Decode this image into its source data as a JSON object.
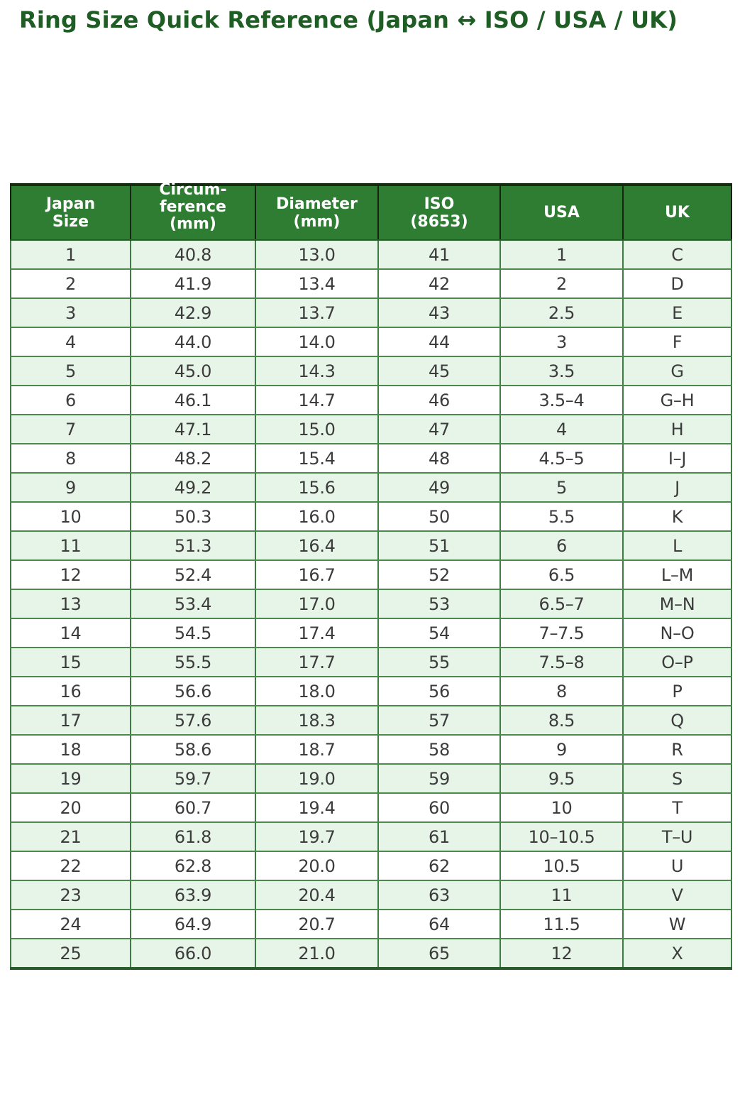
{
  "page": {
    "title": "Ring Size Quick Reference (Japan ↔ ISO / USA / UK)"
  },
  "style": {
    "title_green": "#1e5e24",
    "header_green": "#2f7d33",
    "row_alt_green": "#e7f4e8",
    "grid_green": "#3f7c42",
    "header_rule_dark": "#162a12",
    "cell_text": "#3c3c3c"
  },
  "chart_data": {
    "type": "table",
    "title": "Ring Size Quick Reference (Japan ↔ ISO / USA / UK)",
    "columns": [
      "Japan\nSize",
      "Circum-\nference\n(mm)",
      "Diameter\n(mm)",
      "ISO\n(8653)",
      "USA",
      "UK"
    ],
    "column_keys": [
      "japan_size",
      "circumference_mm",
      "diameter_mm",
      "iso_8653",
      "usa",
      "uk"
    ],
    "rows": [
      [
        "1",
        "40.8",
        "13.0",
        "41",
        "1",
        "C"
      ],
      [
        "2",
        "41.9",
        "13.4",
        "42",
        "2",
        "D"
      ],
      [
        "3",
        "42.9",
        "13.7",
        "43",
        "2.5",
        "E"
      ],
      [
        "4",
        "44.0",
        "14.0",
        "44",
        "3",
        "F"
      ],
      [
        "5",
        "45.0",
        "14.3",
        "45",
        "3.5",
        "G"
      ],
      [
        "6",
        "46.1",
        "14.7",
        "46",
        "3.5–4",
        "G–H"
      ],
      [
        "7",
        "47.1",
        "15.0",
        "47",
        "4",
        "H"
      ],
      [
        "8",
        "48.2",
        "15.4",
        "48",
        "4.5–5",
        "I–J"
      ],
      [
        "9",
        "49.2",
        "15.6",
        "49",
        "5",
        "J"
      ],
      [
        "10",
        "50.3",
        "16.0",
        "50",
        "5.5",
        "K"
      ],
      [
        "11",
        "51.3",
        "16.4",
        "51",
        "6",
        "L"
      ],
      [
        "12",
        "52.4",
        "16.7",
        "52",
        "6.5",
        "L–M"
      ],
      [
        "13",
        "53.4",
        "17.0",
        "53",
        "6.5–7",
        "M–N"
      ],
      [
        "14",
        "54.5",
        "17.4",
        "54",
        "7–7.5",
        "N–O"
      ],
      [
        "15",
        "55.5",
        "17.7",
        "55",
        "7.5–8",
        "O–P"
      ],
      [
        "16",
        "56.6",
        "18.0",
        "56",
        "8",
        "P"
      ],
      [
        "17",
        "57.6",
        "18.3",
        "57",
        "8.5",
        "Q"
      ],
      [
        "18",
        "58.6",
        "18.7",
        "58",
        "9",
        "R"
      ],
      [
        "19",
        "59.7",
        "19.0",
        "59",
        "9.5",
        "S"
      ],
      [
        "20",
        "60.7",
        "19.4",
        "60",
        "10",
        "T"
      ],
      [
        "21",
        "61.8",
        "19.7",
        "61",
        "10–10.5",
        "T–U"
      ],
      [
        "22",
        "62.8",
        "20.0",
        "62",
        "10.5",
        "U"
      ],
      [
        "23",
        "63.9",
        "20.4",
        "63",
        "11",
        "V"
      ],
      [
        "24",
        "64.9",
        "20.7",
        "64",
        "11.5",
        "W"
      ],
      [
        "25",
        "66.0",
        "21.0",
        "65",
        "12",
        "X"
      ]
    ]
  }
}
